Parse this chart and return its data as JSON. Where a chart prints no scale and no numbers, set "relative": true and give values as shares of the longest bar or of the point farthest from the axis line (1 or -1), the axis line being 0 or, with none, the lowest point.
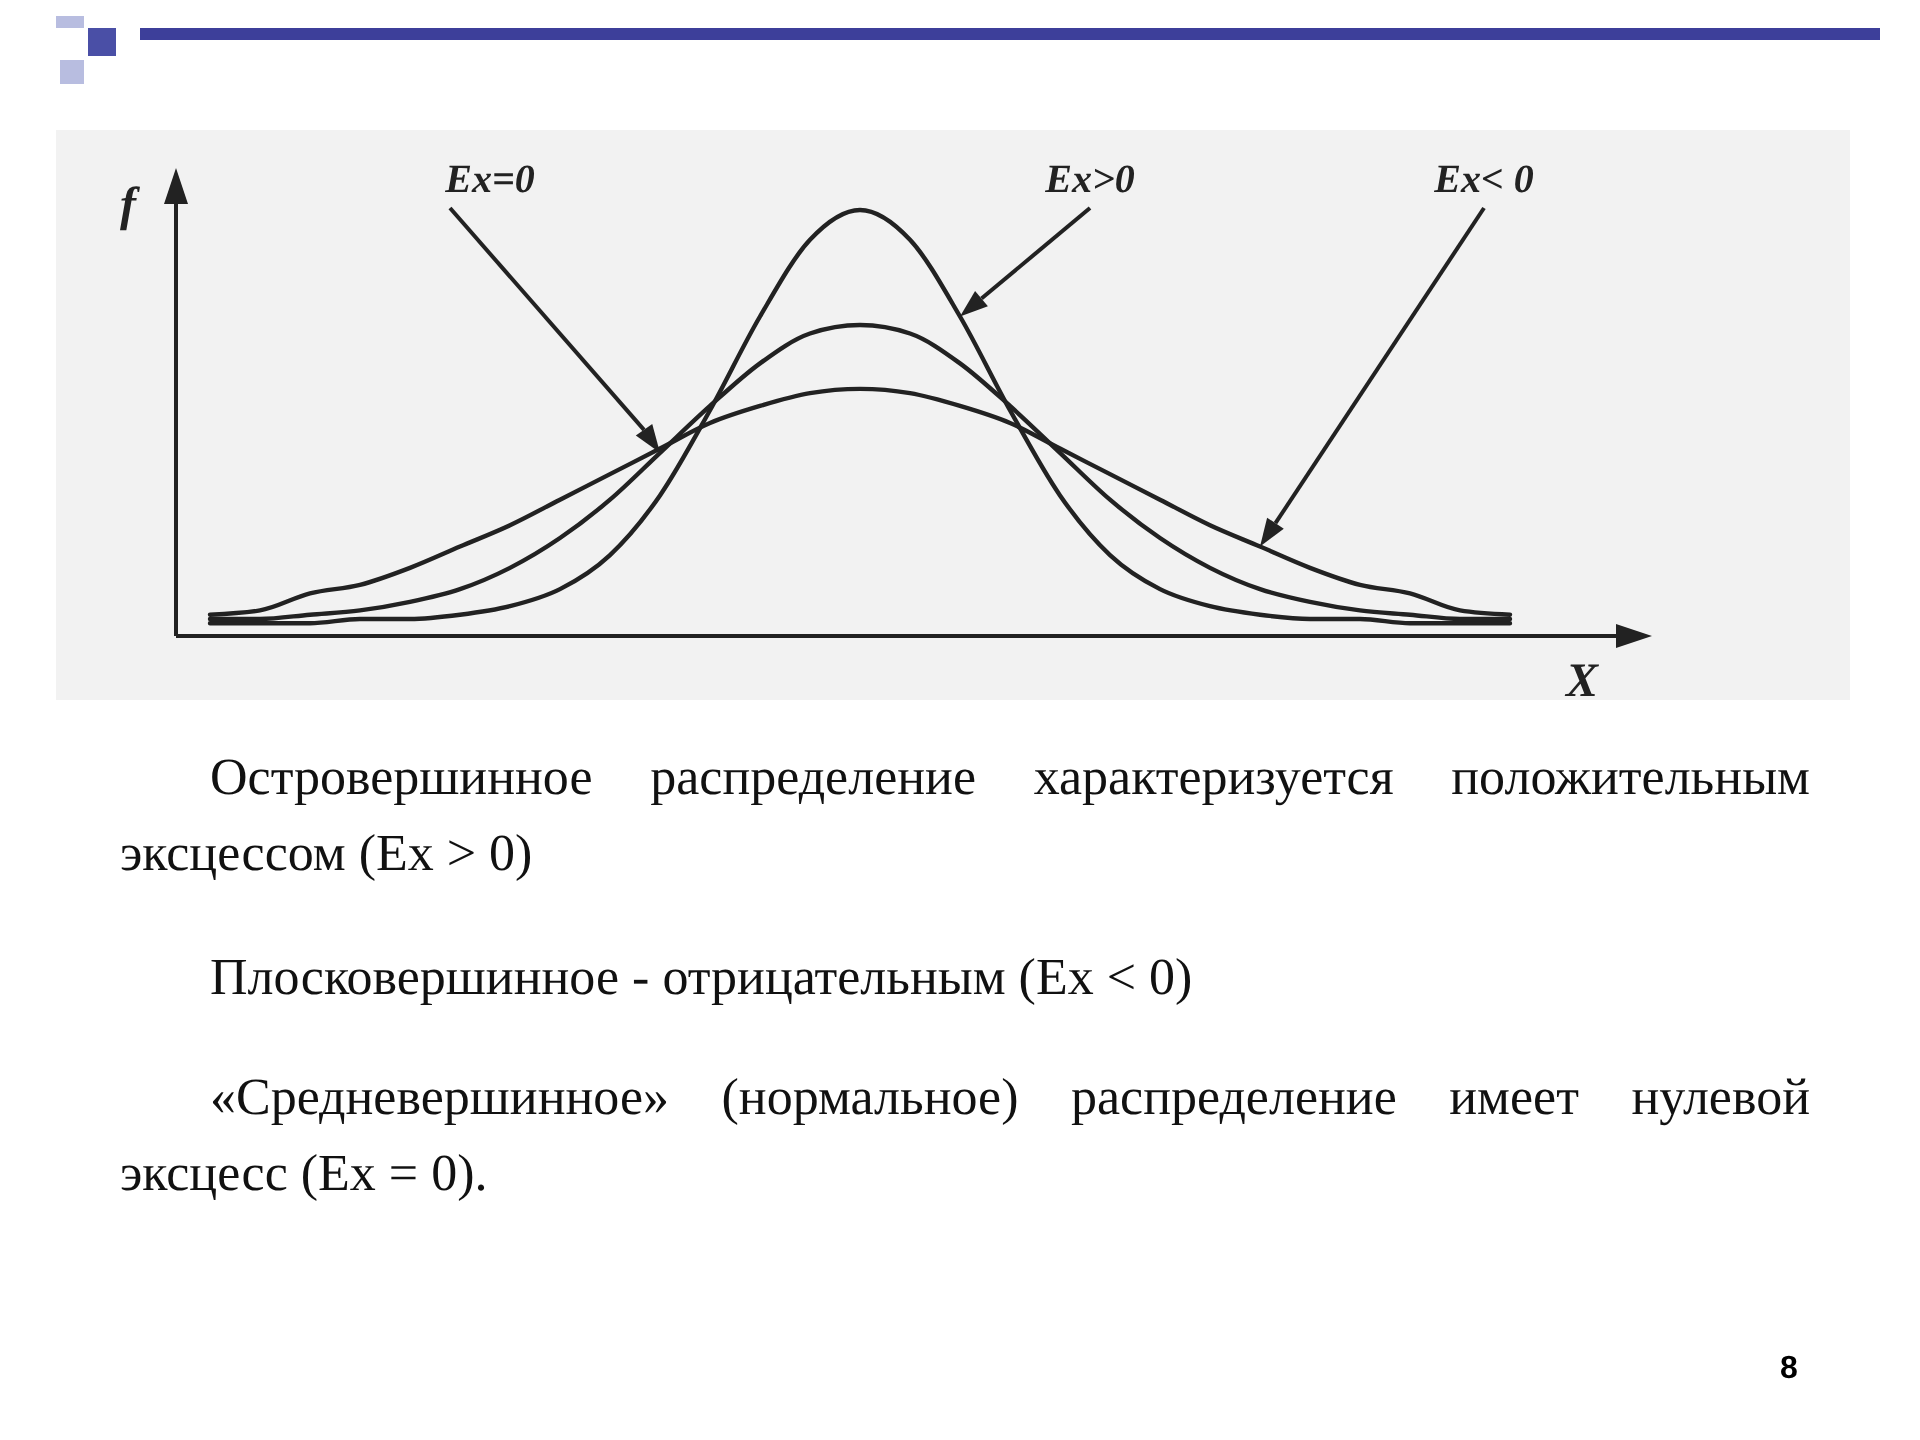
{
  "chart_data": {
    "type": "line",
    "relative": true,
    "xlabel": "X",
    "ylabel": "f",
    "categories": [
      null,
      null,
      null,
      null,
      null,
      null,
      null,
      null,
      null,
      null,
      null,
      null,
      null,
      null,
      null,
      null,
      null,
      null,
      null,
      null,
      null,
      null,
      null,
      null,
      null,
      null,
      null
    ],
    "series": [
      {
        "color": "#222222",
        "values": [
          0.03,
          0.03,
          0.03,
          0.04,
          0.04,
          0.05,
          0.07,
          0.11,
          0.19,
          0.33,
          0.53,
          0.75,
          0.93,
          1,
          0.93,
          0.75,
          0.53,
          0.33,
          0.19,
          0.11,
          0.07,
          0.05,
          0.04,
          0.04,
          0.03,
          0.03,
          0.03
        ]
      },
      {
        "color": "#222222",
        "values": [
          0.04,
          0.04,
          0.05,
          0.06,
          0.08,
          0.11,
          0.16,
          0.23,
          0.32,
          0.43,
          0.54,
          0.64,
          0.71,
          0.73,
          0.71,
          0.64,
          0.54,
          0.43,
          0.32,
          0.23,
          0.16,
          0.11,
          0.08,
          0.06,
          0.05,
          0.04,
          0.04
        ]
      },
      {
        "color": "#222222",
        "values": [
          0.05,
          0.06,
          0.1,
          0.12,
          0.16,
          0.21,
          0.26,
          0.32,
          0.38,
          0.44,
          0.5,
          0.54,
          0.57,
          0.58,
          0.57,
          0.54,
          0.5,
          0.44,
          0.38,
          0.32,
          0.26,
          0.21,
          0.16,
          0.12,
          0.1,
          0.06,
          0.05
        ]
      }
    ],
    "annotations": [
      "Ex=0",
      "Ex>0",
      "Ex< 0",
      "Островершинное распределение характеризуется положительным эксцессом (Ex > 0)",
      "Плосковершинное - отрицательным (Ex < 0)",
      "«Средневершинное» (нормальное) распределение имеет нулевой эксцесс (Ex = 0).",
      "8"
    ]
  }
}
